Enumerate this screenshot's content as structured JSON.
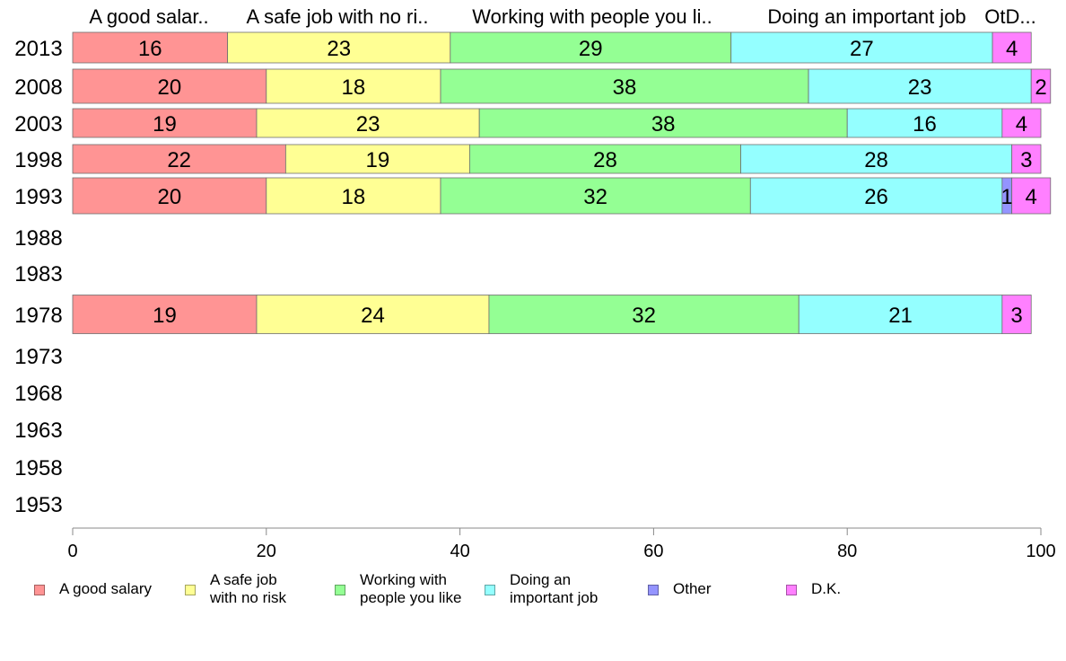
{
  "chart_data": {
    "type": "bar",
    "orientation": "horizontal",
    "stacked": true,
    "xlim": [
      0,
      100
    ],
    "x_ticks": [
      0,
      20,
      40,
      60,
      80,
      100
    ],
    "categories": [
      "2013",
      "2008",
      "2003",
      "1998",
      "1993",
      "1988",
      "1983",
      "1978",
      "1973",
      "1968",
      "1963",
      "1958",
      "1953"
    ],
    "series": [
      {
        "name": "A good salary",
        "color": "#ff9494",
        "values": [
          16,
          20,
          19,
          22,
          20,
          null,
          null,
          19,
          null,
          null,
          null,
          null,
          null
        ]
      },
      {
        "name": "A safe job\nwith no risk",
        "color": "#ffff94",
        "values": [
          23,
          18,
          23,
          19,
          18,
          null,
          null,
          24,
          null,
          null,
          null,
          null,
          null
        ]
      },
      {
        "name": "Working with\npeople you like",
        "color": "#94ff94",
        "values": [
          29,
          38,
          38,
          28,
          32,
          null,
          null,
          32,
          null,
          null,
          null,
          null,
          null
        ]
      },
      {
        "name": "Doing an\nimportant job",
        "color": "#94ffff",
        "values": [
          27,
          23,
          16,
          28,
          26,
          null,
          null,
          21,
          null,
          null,
          null,
          null,
          null
        ]
      },
      {
        "name": "Other",
        "color": "#9494ff",
        "values": [
          0,
          0,
          0,
          0,
          1,
          null,
          null,
          0,
          null,
          null,
          null,
          null,
          null
        ]
      },
      {
        "name": "D.K.",
        "color": "#ff80ff",
        "values": [
          4,
          2,
          4,
          3,
          4,
          null,
          null,
          3,
          null,
          null,
          null,
          null,
          null
        ]
      }
    ],
    "column_headers": [
      "A good salar..",
      "A safe job with no ri..",
      "Working with people you li..",
      "Doing an important job",
      "OtD..."
    ],
    "grid": false,
    "legend_position": "bottom"
  }
}
